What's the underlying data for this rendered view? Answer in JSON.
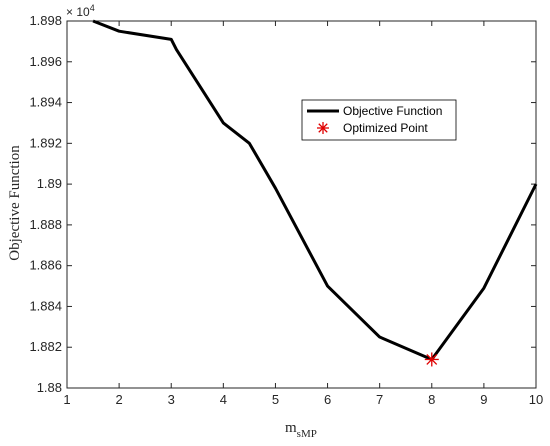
{
  "chart_data": {
    "type": "line",
    "xlabel_main": "m",
    "xlabel_sub": "sMP",
    "ylabel": "Objective Function",
    "y_exponent_base": "× 10",
    "y_exponent_power": "4",
    "xlim": [
      1,
      10
    ],
    "ylim": [
      18800,
      18980
    ],
    "xticks": [
      1,
      2,
      3,
      4,
      5,
      6,
      7,
      8,
      9,
      10
    ],
    "yticks": [
      18800,
      18820,
      18840,
      18860,
      18880,
      18900,
      18920,
      18940,
      18960,
      18980
    ],
    "ytick_labels": [
      "1.88",
      "1.882",
      "1.884",
      "1.886",
      "1.888",
      "1.89",
      "1.892",
      "1.894",
      "1.896",
      "1.898"
    ],
    "grid": false,
    "legend_position": "upper-middle-right",
    "series": [
      {
        "name": "Objective Function",
        "color": "#000000",
        "x": [
          1.5,
          2,
          3,
          3.1,
          4,
          4.5,
          5,
          6,
          7,
          8,
          9,
          10
        ],
        "y": [
          18980,
          18975,
          18971,
          18966,
          18930,
          18920,
          18898,
          18850,
          18825,
          18814,
          18849,
          18900
        ]
      },
      {
        "name": "Optimized Point",
        "color": "#e00000",
        "marker": "asterisk",
        "x": [
          8
        ],
        "y": [
          18814
        ]
      }
    ]
  }
}
